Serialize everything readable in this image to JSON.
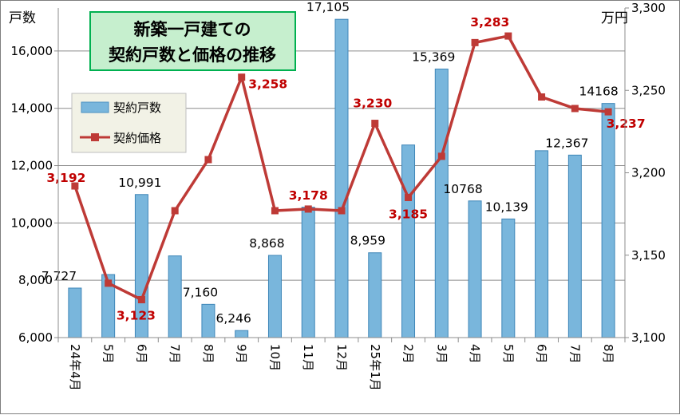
{
  "chart_data": {
    "type": "bar",
    "title_lines": [
      "新築一戸建ての",
      "契約戸数と価格の推移"
    ],
    "y_left_label": "戸数",
    "y_right_label": "万円",
    "categories": [
      "24年4月",
      "5月",
      "6月",
      "7月",
      "8月",
      "9月",
      "10月",
      "11月",
      "12月",
      "25年1月",
      "2月",
      "3月",
      "4月",
      "5月",
      "6月",
      "7月",
      "8月"
    ],
    "y_left_ticks": [
      "6,000",
      "8,000",
      "10,000",
      "12,000",
      "14,000",
      "16,000"
    ],
    "y_right_ticks": [
      "3,100",
      "3,150",
      "3,200",
      "3,250",
      "3,300"
    ],
    "ylim_left": [
      6000,
      17500
    ],
    "ylim_right": [
      3100,
      3300
    ],
    "series": [
      {
        "name": "契約戸数",
        "type": "bar",
        "axis": "left",
        "color": "#79b6dc",
        "values": [
          7727,
          8200,
          10991,
          8850,
          7160,
          6246,
          8868,
          10550,
          17105,
          8959,
          12720,
          15369,
          10768,
          10139,
          12520,
          12367,
          14168
        ],
        "labels": [
          "7,727",
          "",
          "10,991",
          "",
          "7,160",
          "6,246",
          "8,868",
          "",
          "17,105",
          "8,959",
          "",
          "15,369",
          "10768",
          "10,139",
          "",
          "12,367",
          "14168"
        ]
      },
      {
        "name": "契約価格",
        "type": "line",
        "axis": "right",
        "color": "#be3a36",
        "values": [
          3192,
          3133,
          3123,
          3177,
          3208,
          3258,
          3177,
          3178,
          3177,
          3230,
          3185,
          3210,
          3279,
          3283,
          3246,
          3239,
          3237
        ],
        "labels": [
          "3,192",
          "",
          "3,123",
          "",
          "",
          "3,258",
          "",
          "3,178",
          "",
          "3,230",
          "3,185",
          "",
          "",
          "3,283",
          "",
          "",
          "3,237"
        ]
      }
    ]
  }
}
